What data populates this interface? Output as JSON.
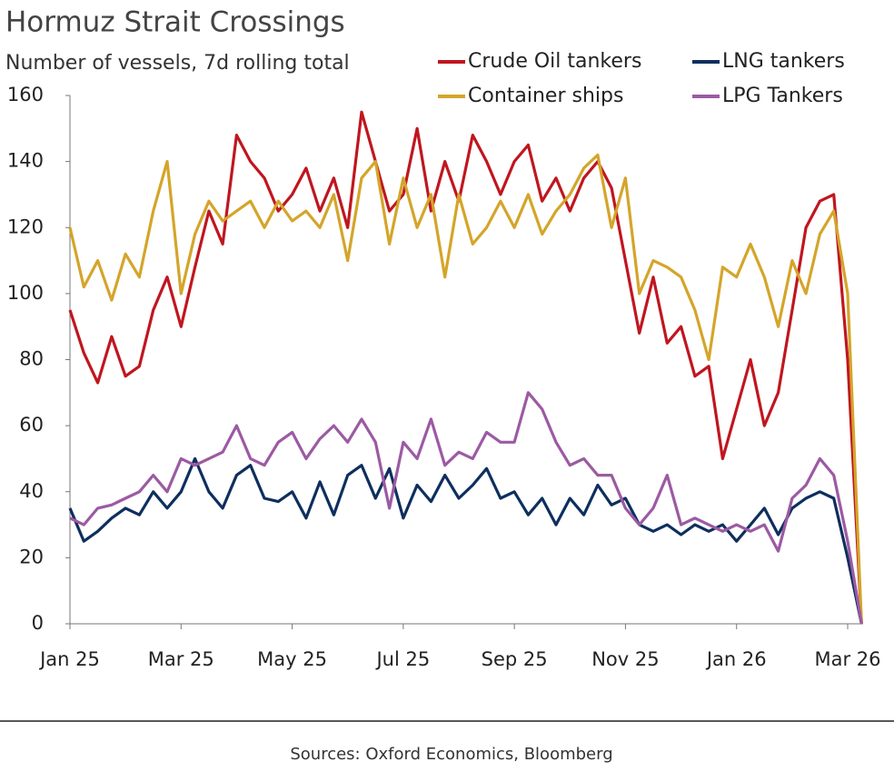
{
  "chart_data": {
    "type": "line",
    "title": "Hormuz Strait Crossings",
    "subtitle": "Number of vessels, 7d rolling total",
    "source": "Sources: Oxford Economics, Bloomberg",
    "legend": "top-right",
    "grid": false,
    "categories": [
      "Jan 25",
      null,
      null,
      null,
      null,
      null,
      null,
      null,
      "Mar 25",
      null,
      null,
      null,
      null,
      null,
      null,
      null,
      "May 25",
      null,
      null,
      null,
      null,
      null,
      null,
      null,
      "Jul 25",
      null,
      null,
      null,
      null,
      null,
      null,
      null,
      "Sep 25",
      null,
      null,
      null,
      null,
      null,
      null,
      null,
      "Nov 25",
      null,
      null,
      null,
      null,
      null,
      null,
      null,
      "Jan 26",
      null,
      null,
      null,
      null,
      null,
      null,
      null,
      "Mar 26",
      null
    ],
    "ylim": [
      0,
      160
    ],
    "yticks": [
      0,
      20,
      40,
      60,
      80,
      100,
      120,
      140,
      160
    ],
    "series": [
      {
        "name": "Crude Oil tankers",
        "color": "#c0161f",
        "values": [
          95,
          82,
          73,
          87,
          75,
          78,
          95,
          105,
          90,
          108,
          125,
          115,
          148,
          140,
          135,
          125,
          130,
          138,
          125,
          135,
          120,
          155,
          140,
          125,
          130,
          150,
          125,
          140,
          128,
          148,
          140,
          130,
          140,
          145,
          128,
          135,
          125,
          135,
          140,
          132,
          110,
          88,
          105,
          85,
          90,
          75,
          78,
          50,
          65,
          80,
          60,
          70,
          95,
          120,
          128,
          130,
          80,
          0
        ]
      },
      {
        "name": "LNG tankers",
        "color": "#0e2f5e",
        "values": [
          35,
          25,
          28,
          32,
          35,
          33,
          40,
          35,
          40,
          50,
          40,
          35,
          45,
          48,
          38,
          37,
          40,
          32,
          43,
          33,
          45,
          48,
          38,
          47,
          32,
          42,
          37,
          45,
          38,
          42,
          47,
          38,
          40,
          33,
          38,
          30,
          38,
          33,
          42,
          36,
          38,
          30,
          28,
          30,
          27,
          30,
          28,
          30,
          25,
          30,
          35,
          27,
          35,
          38,
          40,
          38,
          20,
          0
        ]
      },
      {
        "name": "Container ships",
        "color": "#d4a52a",
        "values": [
          120,
          102,
          110,
          98,
          112,
          105,
          125,
          140,
          100,
          118,
          128,
          122,
          125,
          128,
          120,
          128,
          122,
          125,
          120,
          130,
          110,
          135,
          140,
          115,
          135,
          120,
          130,
          105,
          130,
          115,
          120,
          128,
          120,
          130,
          118,
          125,
          130,
          138,
          142,
          120,
          135,
          100,
          110,
          108,
          105,
          95,
          80,
          108,
          105,
          115,
          105,
          90,
          110,
          100,
          118,
          125,
          100,
          0
        ]
      },
      {
        "name": "LPG Tankers",
        "color": "#9c5aa3",
        "values": [
          32,
          30,
          35,
          36,
          38,
          40,
          45,
          40,
          50,
          48,
          50,
          52,
          60,
          50,
          48,
          55,
          58,
          50,
          56,
          60,
          55,
          62,
          55,
          35,
          55,
          50,
          62,
          48,
          52,
          50,
          58,
          55,
          55,
          70,
          65,
          55,
          48,
          50,
          45,
          45,
          35,
          30,
          35,
          45,
          30,
          32,
          30,
          28,
          30,
          28,
          30,
          22,
          38,
          42,
          50,
          45,
          25,
          0
        ]
      }
    ]
  }
}
